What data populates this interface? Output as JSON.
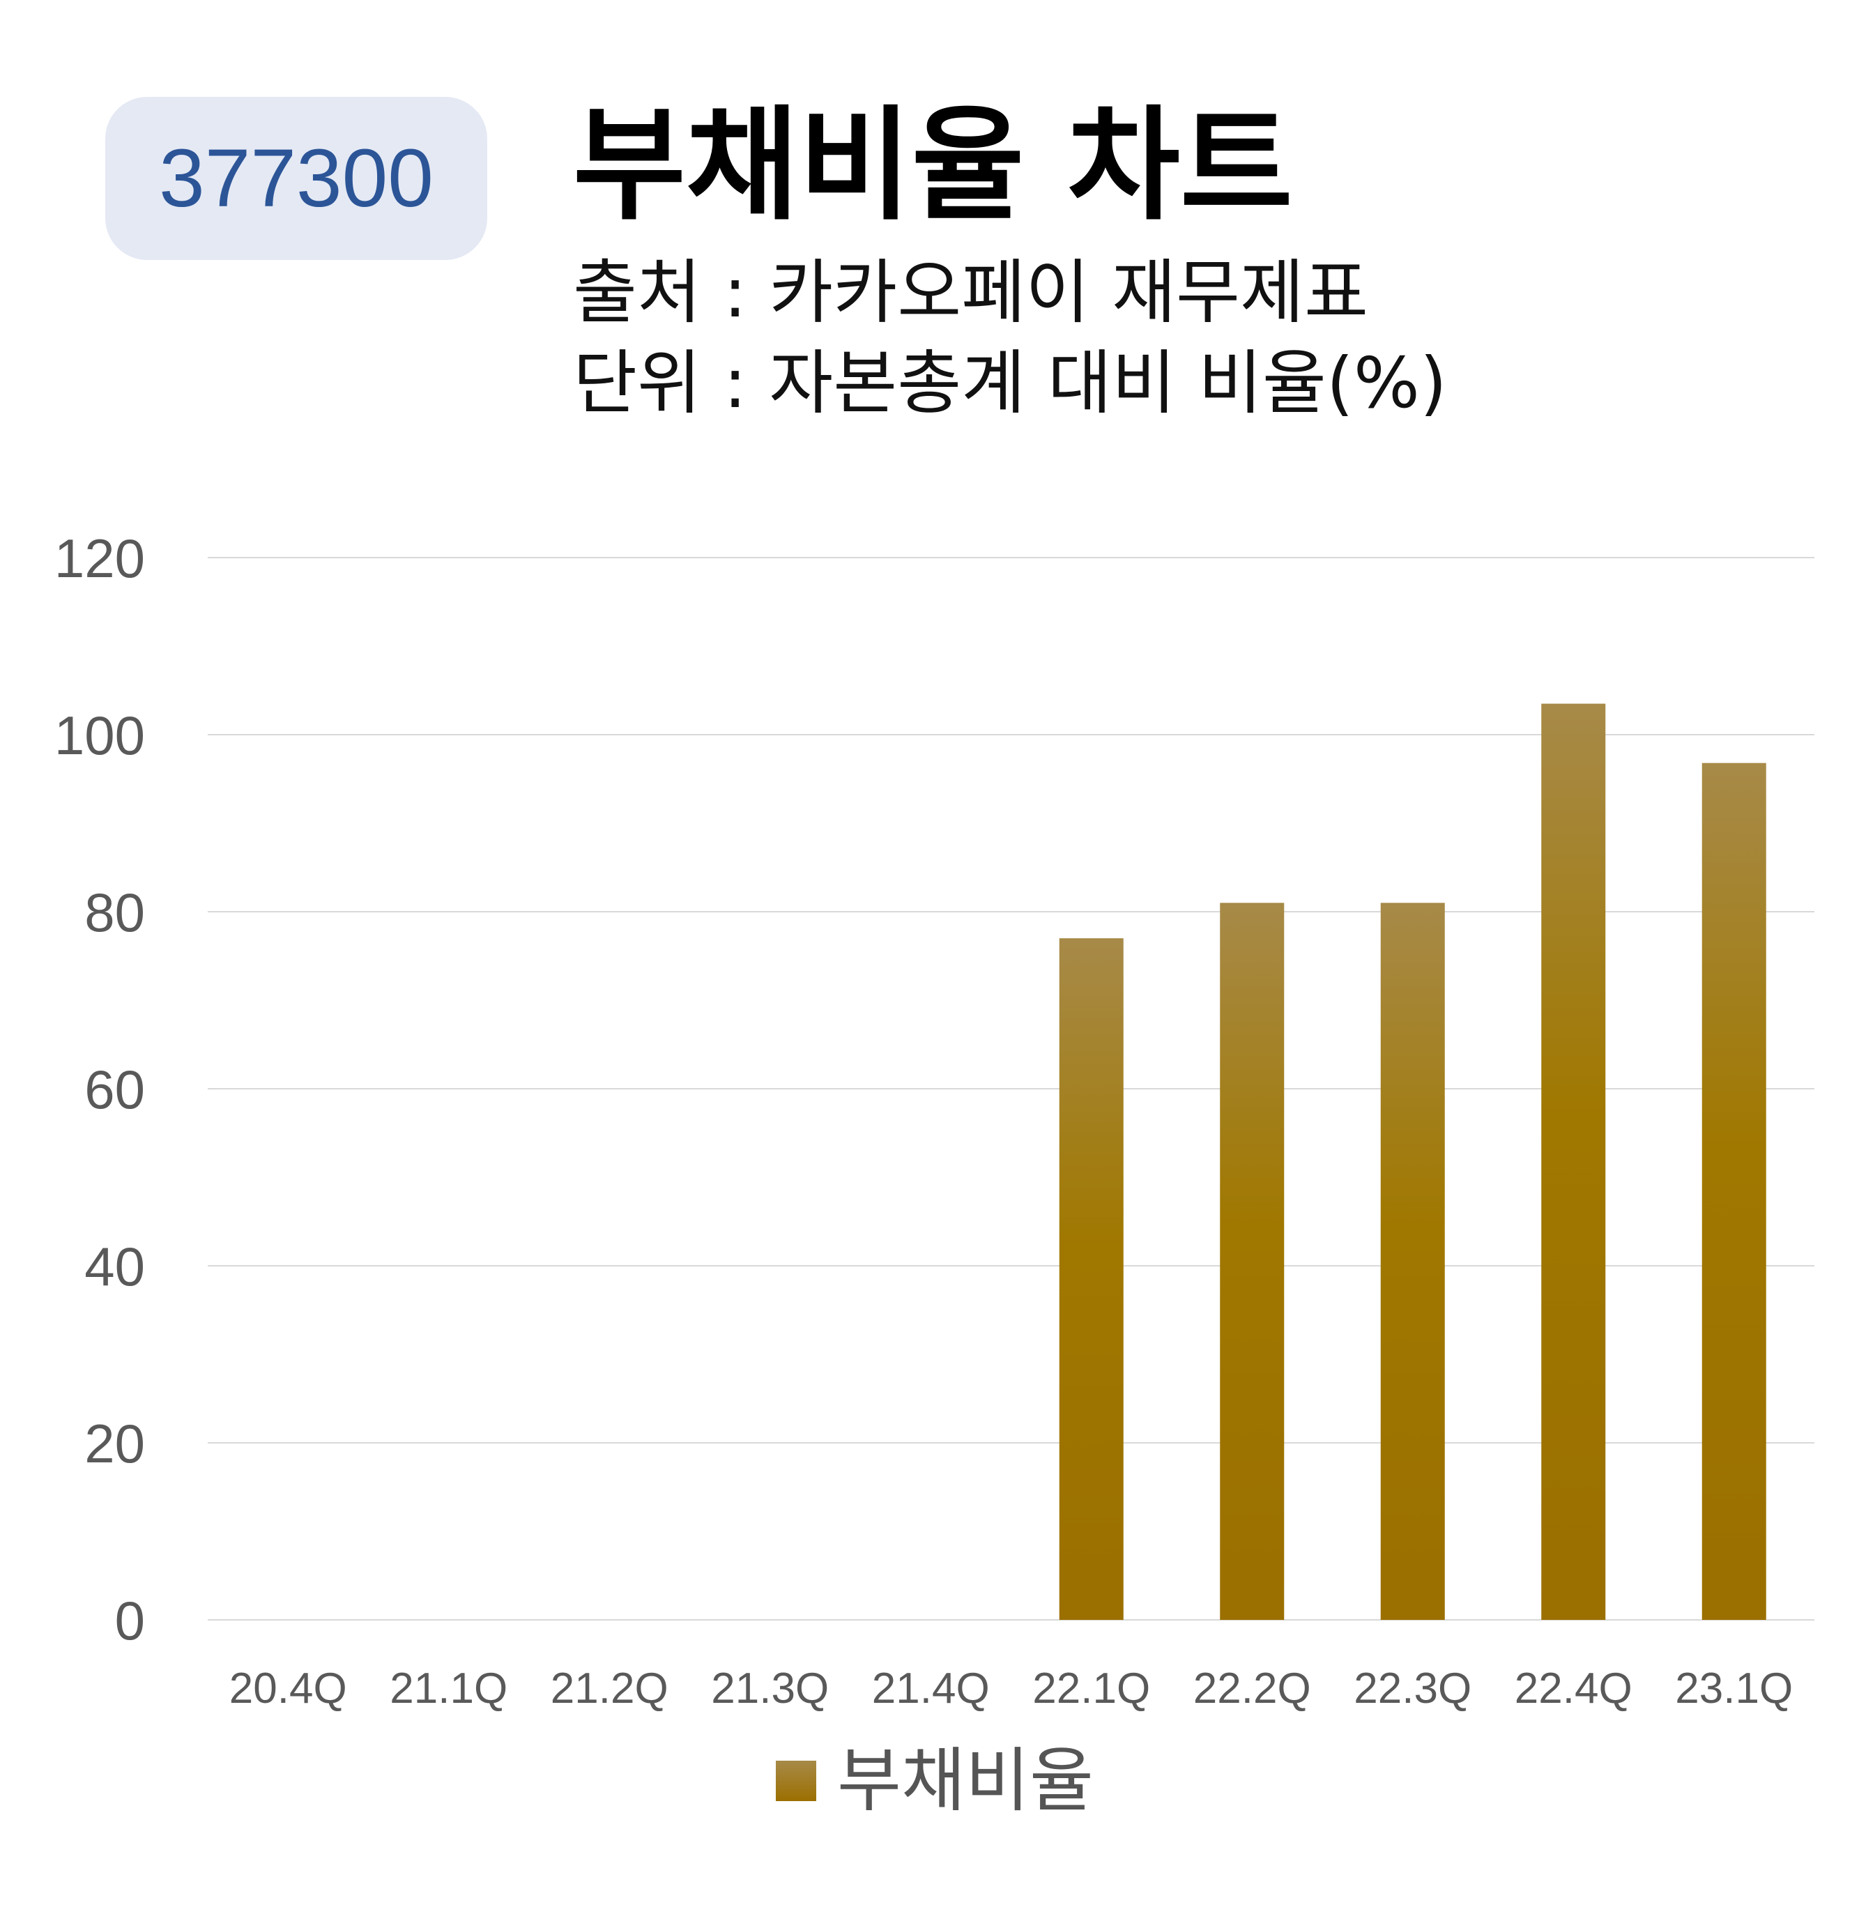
{
  "badge": {
    "code": "377300"
  },
  "header": {
    "title": "부채비율 차트",
    "source": "출처 : 카카오페이 재무제표",
    "unit": "단위 : 자본총계 대비 비율(%)"
  },
  "colors": {
    "bar_top": "#a78a48",
    "bar_bottom": "#9b6f00",
    "badge_bg": "#e4e9f4",
    "badge_text": "#2c5597",
    "grid": "#d9d9d9",
    "tick_text": "#595959"
  },
  "chart_data": {
    "type": "bar",
    "categories": [
      "20.4Q",
      "21.1Q",
      "21.2Q",
      "21.3Q",
      "21.4Q",
      "22.1Q",
      "22.2Q",
      "22.3Q",
      "22.4Q",
      "23.1Q"
    ],
    "series": [
      {
        "name": "부채비율",
        "values": [
          null,
          null,
          null,
          null,
          null,
          77,
          81,
          81,
          103.5,
          96.8
        ]
      }
    ],
    "ylim": [
      0,
      120
    ],
    "yticks": [
      0,
      20,
      40,
      60,
      80,
      100,
      120
    ],
    "grid": true,
    "legend": "bottom"
  }
}
